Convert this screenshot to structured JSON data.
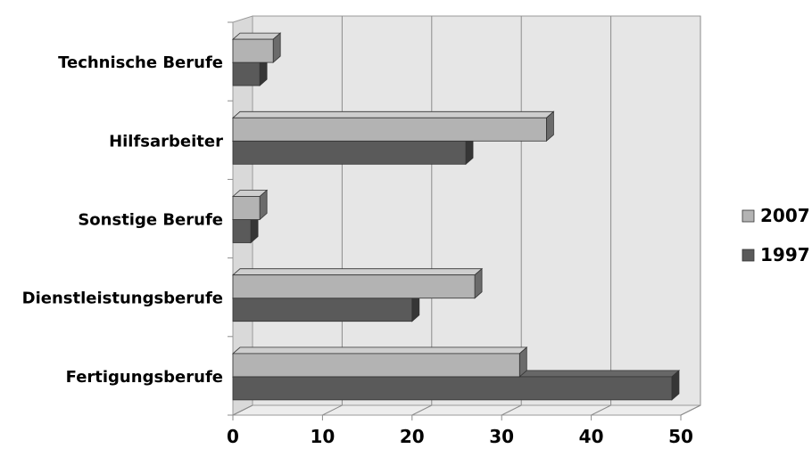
{
  "chart_data": {
    "type": "bar",
    "orientation": "horizontal",
    "style": "3d-clustered",
    "categories": [
      "Fertigungsberufe",
      "Dienstleistungsberufe",
      "Sonstige Berufe",
      "Hilfsarbeiter",
      "Technische Berufe"
    ],
    "series": [
      {
        "name": "1997",
        "color": "#5a5a5a",
        "values": [
          49,
          20,
          2,
          26,
          3
        ]
      },
      {
        "name": "2007",
        "color": "#b3b3b3",
        "values": [
          32,
          27,
          3,
          35,
          4.5
        ]
      }
    ],
    "xlim": [
      0,
      50
    ],
    "xticks": [
      "0",
      "10",
      "20",
      "30",
      "40",
      "50"
    ],
    "grid": true,
    "legend_position": "right",
    "legend_order": [
      "2007",
      "1997"
    ]
  }
}
